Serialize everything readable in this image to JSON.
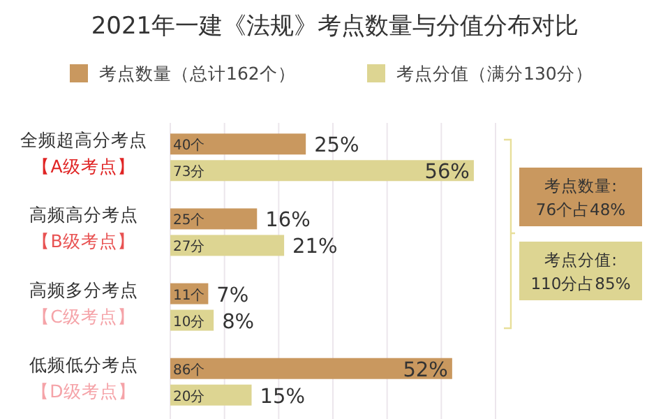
{
  "chart_data": {
    "type": "bar",
    "orientation": "horizontal",
    "title": "2021年一建《法规》考点数量与分值分布对比",
    "categories": [
      "全频超高分考点【A级考点】",
      "高频高分考点【B级考点】",
      "高频多分考点【C级考点】",
      "低频低分考点【D级考点】"
    ],
    "series": [
      {
        "name": "考点数量（总计162个）",
        "color": "#c9985f",
        "values": [
          25,
          16,
          7,
          52
        ],
        "value_labels": [
          "25%",
          "16%",
          "7%",
          "52%"
        ]
      },
      {
        "name": "考点分值（满分130分）",
        "color": "#ddd592",
        "values": [
          56,
          21,
          8,
          15
        ],
        "value_labels": [
          "56%",
          "21%",
          "8%",
          "15%"
        ]
      }
    ],
    "xlim": [
      0,
      60
    ],
    "xticks": [
      {
        "value": 0,
        "label": null
      },
      {
        "value": 10,
        "label": null
      },
      {
        "value": 20,
        "label": null
      },
      {
        "value": 30,
        "label": null
      },
      {
        "value": 40,
        "label": null
      },
      {
        "value": 50,
        "label": null
      },
      {
        "value": 60,
        "label": null
      }
    ],
    "tick_labels": "y",
    "grid": "x",
    "legend": "top",
    "annotations": [
      "40个",
      "73分",
      "25个",
      "27分",
      "11个",
      "10分",
      "86个",
      "20分",
      "考点数量:\n76个占48%",
      "考点分值:\n110分占85%"
    ]
  }
}
